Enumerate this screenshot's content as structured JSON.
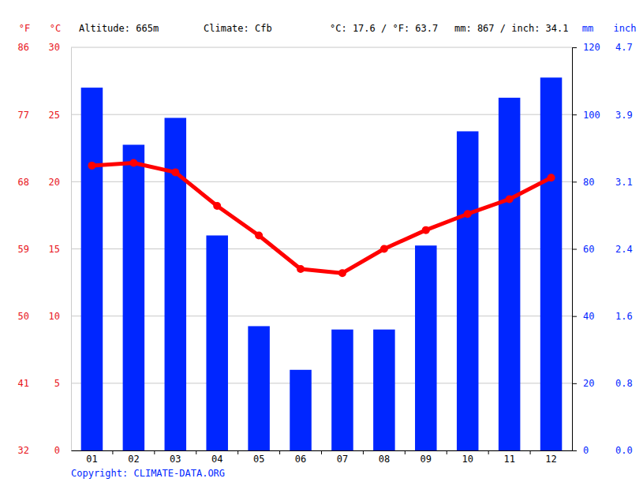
{
  "chart_data": {
    "type": "combo",
    "header": [
      "Altitude: 665m",
      "Climate: Cfb",
      "°C: 17.6 / °F: 63.7",
      "mm: 867 / inch: 34.1"
    ],
    "copyright": "Copyright: CLIMATE-DATA.ORG",
    "ylabel": "°C",
    "ylabel_alt": "°F",
    "y2label": "mm",
    "y2label_alt": "inch",
    "categories": [
      "01",
      "02",
      "03",
      "04",
      "05",
      "06",
      "07",
      "08",
      "09",
      "10",
      "11",
      "12"
    ],
    "series": [
      {
        "type": "bar",
        "color": "#0026ff",
        "axis": "y2",
        "values": [
          108,
          91,
          99,
          64,
          37,
          24,
          36,
          36,
          61,
          95,
          105,
          111
        ]
      },
      {
        "type": "line",
        "color": "#ff0000",
        "marker": "circle",
        "values": [
          21.2,
          21.4,
          20.7,
          18.2,
          16.0,
          13.5,
          13.2,
          15.0,
          16.4,
          17.6,
          18.7,
          20.3
        ]
      }
    ],
    "ylim": [
      0,
      30
    ],
    "yticks": [
      0,
      5,
      10,
      15,
      20,
      25,
      30
    ],
    "yticks_alt": [
      {
        "value": 0,
        "label": "32"
      },
      {
        "value": 5,
        "label": "41"
      },
      {
        "value": 10,
        "label": "50"
      },
      {
        "value": 15,
        "label": "59"
      },
      {
        "value": 20,
        "label": "68"
      },
      {
        "value": 25,
        "label": "77"
      },
      {
        "value": 30,
        "label": "86"
      }
    ],
    "y2lim": [
      0,
      120
    ],
    "y2ticks": [
      0,
      20,
      40,
      60,
      80,
      100,
      120
    ],
    "y2ticks_alt": [
      {
        "value": 0,
        "label": "0.0"
      },
      {
        "value": 20,
        "label": "0.8"
      },
      {
        "value": 40,
        "label": "1.6"
      },
      {
        "value": 60,
        "label": "2.4"
      },
      {
        "value": 80,
        "label": "3.1"
      },
      {
        "value": 100,
        "label": "3.9"
      },
      {
        "value": 120,
        "label": "4.7"
      }
    ],
    "grid": true
  }
}
